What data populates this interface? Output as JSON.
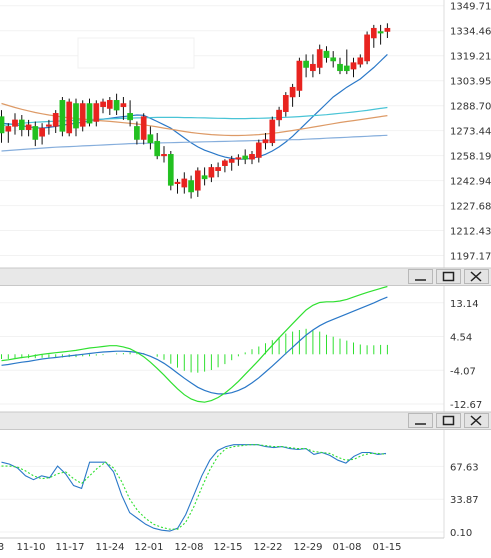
{
  "chart_data": [
    {
      "type": "candlestick",
      "title": "",
      "y_ticks": [
        "1349.71",
        "1334.46",
        "1319.21",
        "1303.95",
        "1288.70",
        "1273.44",
        "1258.19",
        "1242.94",
        "1227.68",
        "1212.43",
        "1197.17"
      ],
      "ylim": [
        1192,
        1352
      ],
      "candles": [
        {
          "o": 1282,
          "h": 1286,
          "l": 1266,
          "c": 1272
        },
        {
          "o": 1273,
          "h": 1278,
          "l": 1266,
          "c": 1276
        },
        {
          "o": 1276,
          "h": 1284,
          "l": 1271,
          "c": 1280
        },
        {
          "o": 1280,
          "h": 1283,
          "l": 1270,
          "c": 1274
        },
        {
          "o": 1274,
          "h": 1280,
          "l": 1270,
          "c": 1277
        },
        {
          "o": 1276,
          "h": 1279,
          "l": 1264,
          "c": 1268
        },
        {
          "o": 1270,
          "h": 1278,
          "l": 1265,
          "c": 1275
        },
        {
          "o": 1276,
          "h": 1280,
          "l": 1271,
          "c": 1277
        },
        {
          "o": 1276,
          "h": 1286,
          "l": 1272,
          "c": 1284
        },
        {
          "o": 1292,
          "h": 1294,
          "l": 1270,
          "c": 1273
        },
        {
          "o": 1272,
          "h": 1293,
          "l": 1270,
          "c": 1291
        },
        {
          "o": 1290,
          "h": 1293,
          "l": 1270,
          "c": 1275
        },
        {
          "o": 1276,
          "h": 1292,
          "l": 1273,
          "c": 1290
        },
        {
          "o": 1290,
          "h": 1293,
          "l": 1276,
          "c": 1278
        },
        {
          "o": 1279,
          "h": 1292,
          "l": 1276,
          "c": 1290
        },
        {
          "o": 1288,
          "h": 1293,
          "l": 1284,
          "c": 1291
        },
        {
          "o": 1287,
          "h": 1294,
          "l": 1283,
          "c": 1292
        },
        {
          "o": 1292,
          "h": 1296,
          "l": 1283,
          "c": 1286
        },
        {
          "o": 1288,
          "h": 1294,
          "l": 1280,
          "c": 1290
        },
        {
          "o": 1284,
          "h": 1292,
          "l": 1276,
          "c": 1280
        },
        {
          "o": 1276,
          "h": 1279,
          "l": 1265,
          "c": 1268
        },
        {
          "o": 1268,
          "h": 1284,
          "l": 1265,
          "c": 1282
        },
        {
          "o": 1271,
          "h": 1276,
          "l": 1262,
          "c": 1266
        },
        {
          "o": 1267,
          "h": 1272,
          "l": 1256,
          "c": 1258
        },
        {
          "o": 1258,
          "h": 1264,
          "l": 1254,
          "c": 1259
        },
        {
          "o": 1259,
          "h": 1261,
          "l": 1237,
          "c": 1240
        },
        {
          "o": 1241,
          "h": 1244,
          "l": 1235,
          "c": 1242
        },
        {
          "o": 1239,
          "h": 1248,
          "l": 1235,
          "c": 1244
        },
        {
          "o": 1243,
          "h": 1246,
          "l": 1232,
          "c": 1236
        },
        {
          "o": 1237,
          "h": 1251,
          "l": 1233,
          "c": 1249
        },
        {
          "o": 1246,
          "h": 1251,
          "l": 1240,
          "c": 1244
        },
        {
          "o": 1245,
          "h": 1253,
          "l": 1242,
          "c": 1251
        },
        {
          "o": 1249,
          "h": 1254,
          "l": 1245,
          "c": 1251
        },
        {
          "o": 1252,
          "h": 1256,
          "l": 1248,
          "c": 1255
        },
        {
          "o": 1254,
          "h": 1258,
          "l": 1249,
          "c": 1256
        },
        {
          "o": 1256,
          "h": 1259,
          "l": 1252,
          "c": 1257
        },
        {
          "o": 1258,
          "h": 1262,
          "l": 1253,
          "c": 1256
        },
        {
          "o": 1256,
          "h": 1261,
          "l": 1253,
          "c": 1259
        },
        {
          "o": 1257,
          "h": 1268,
          "l": 1254,
          "c": 1266
        },
        {
          "o": 1266,
          "h": 1272,
          "l": 1262,
          "c": 1268
        },
        {
          "o": 1266,
          "h": 1282,
          "l": 1264,
          "c": 1280
        },
        {
          "o": 1280,
          "h": 1288,
          "l": 1276,
          "c": 1286
        },
        {
          "o": 1285,
          "h": 1297,
          "l": 1282,
          "c": 1295
        },
        {
          "o": 1294,
          "h": 1302,
          "l": 1288,
          "c": 1300
        },
        {
          "o": 1298,
          "h": 1318,
          "l": 1294,
          "c": 1316
        },
        {
          "o": 1316,
          "h": 1320,
          "l": 1306,
          "c": 1312
        },
        {
          "o": 1310,
          "h": 1320,
          "l": 1306,
          "c": 1314
        },
        {
          "o": 1312,
          "h": 1326,
          "l": 1308,
          "c": 1323
        },
        {
          "o": 1322,
          "h": 1325,
          "l": 1315,
          "c": 1318
        },
        {
          "o": 1318,
          "h": 1322,
          "l": 1312,
          "c": 1316
        },
        {
          "o": 1314,
          "h": 1318,
          "l": 1308,
          "c": 1310
        },
        {
          "o": 1313,
          "h": 1323,
          "l": 1308,
          "c": 1310
        },
        {
          "o": 1311,
          "h": 1318,
          "l": 1306,
          "c": 1315
        },
        {
          "o": 1314,
          "h": 1320,
          "l": 1312,
          "c": 1318
        },
        {
          "o": 1316,
          "h": 1334,
          "l": 1314,
          "c": 1332
        },
        {
          "o": 1330,
          "h": 1338,
          "l": 1324,
          "c": 1336
        },
        {
          "o": 1334,
          "h": 1338,
          "l": 1326,
          "c": 1333
        },
        {
          "o": 1334,
          "h": 1339,
          "l": 1330,
          "c": 1336
        }
      ],
      "lines": [
        {
          "color": "#2a78c8",
          "values": [
            1278,
            1277.6,
            1277.1,
            1276.4,
            1275.8,
            1275.2,
            1275.0,
            1275.4,
            1276.0,
            1276.8,
            1277.4,
            1278.0,
            1278.6,
            1279.2,
            1280.0,
            1280.5,
            1281.0,
            1281.5,
            1282.0,
            1282.5,
            1283.0,
            1282.8,
            1281.0,
            1279.0,
            1277.0,
            1275.0,
            1272.0,
            1269.0,
            1266.0,
            1263.5,
            1261.5,
            1260.0,
            1258.5,
            1257.3,
            1256.5,
            1256.0,
            1256.0,
            1256.6,
            1257.5,
            1259.0,
            1261.0,
            1263.5,
            1266.5,
            1270.0,
            1274.0,
            1278.0,
            1282.0,
            1286.0,
            1290.0,
            1294.0,
            1297.0,
            1300.0,
            1302.5,
            1305.0,
            1308.5,
            1312.0,
            1316.0,
            1320.0
          ]
        },
        {
          "color": "#49c4d6",
          "values": [
            1276.5,
            1277.0,
            1277.5,
            1278.0,
            1278.3,
            1278.6,
            1278.8,
            1279.0,
            1279.2,
            1279.4,
            1279.6,
            1279.8,
            1280.0,
            1280.2,
            1280.4,
            1280.5,
            1280.7,
            1280.8,
            1281.0,
            1281.1,
            1281.2,
            1281.3,
            1281.4,
            1281.5,
            1281.5,
            1281.5,
            1281.5,
            1281.4,
            1281.4,
            1281.3,
            1281.2,
            1281.1,
            1281.0,
            1280.9,
            1280.8,
            1280.8,
            1280.8,
            1280.9,
            1281.0,
            1281.1,
            1281.2,
            1281.4,
            1281.6,
            1281.8,
            1282.0,
            1282.3,
            1282.6,
            1282.9,
            1283.2,
            1283.6,
            1284.0,
            1284.4,
            1284.8,
            1285.3,
            1285.8,
            1286.4,
            1287.0,
            1287.6
          ]
        },
        {
          "color": "#dd9a66",
          "values": [
            1290.0,
            1288.8,
            1287.6,
            1286.5,
            1285.5,
            1284.5,
            1283.7,
            1283.0,
            1282.4,
            1281.8,
            1281.3,
            1280.9,
            1280.5,
            1280.1,
            1279.7,
            1279.4,
            1279.1,
            1278.7,
            1278.3,
            1277.9,
            1277.5,
            1277.0,
            1276.4,
            1275.7,
            1275.0,
            1274.3,
            1273.6,
            1272.9,
            1272.3,
            1271.8,
            1271.4,
            1271.0,
            1270.8,
            1270.6,
            1270.5,
            1270.5,
            1270.6,
            1270.8,
            1271.0,
            1271.4,
            1271.8,
            1272.3,
            1272.9,
            1273.5,
            1274.2,
            1274.9,
            1275.6,
            1276.3,
            1277.0,
            1277.7,
            1278.4,
            1279.0,
            1279.6,
            1280.2,
            1280.8,
            1281.4,
            1282.0,
            1282.6
          ]
        },
        {
          "color": "#86aedc",
          "values": [
            1261.0,
            1261.3,
            1261.6,
            1261.9,
            1262.2,
            1262.5,
            1262.8,
            1263.1,
            1263.3,
            1263.5,
            1263.7,
            1263.9,
            1264.1,
            1264.3,
            1264.5,
            1264.7,
            1264.9,
            1265.1,
            1265.3,
            1265.5,
            1265.6,
            1265.7,
            1265.8,
            1265.9,
            1266.0,
            1266.1,
            1266.2,
            1266.3,
            1266.4,
            1266.5,
            1266.6,
            1266.7,
            1266.8,
            1266.9,
            1267.0,
            1267.1,
            1267.2,
            1267.3,
            1267.4,
            1267.5,
            1267.6,
            1267.7,
            1267.8,
            1267.9,
            1268.0,
            1268.2,
            1268.4,
            1268.6,
            1268.8,
            1269.0,
            1269.2,
            1269.4,
            1269.6,
            1269.8,
            1270.0,
            1270.2,
            1270.4,
            1270.6
          ]
        }
      ]
    },
    {
      "type": "line+bar",
      "title": "",
      "y_ticks": [
        "13.14",
        "4.54",
        "-4.07",
        "-12.67"
      ],
      "ylim": [
        -14.2,
        16.4
      ],
      "histogram": [
        -1.2,
        -1.2,
        -1.2,
        -1.0,
        -1.0,
        -1.0,
        -0.9,
        -0.9,
        -0.8,
        -0.8,
        -0.7,
        -0.7,
        -0.5,
        -0.5,
        -0.3,
        -0.2,
        0.0,
        0.2,
        0.3,
        0.5,
        0.5,
        0.3,
        0.0,
        -0.6,
        -1.4,
        -2.4,
        -3.4,
        -4.2,
        -4.6,
        -4.7,
        -4.4,
        -4.0,
        -3.3,
        -2.5,
        -1.5,
        -0.5,
        0.5,
        1.3,
        2.0,
        2.8,
        3.6,
        4.4,
        5.3,
        5.8,
        6.2,
        6.5,
        6.2,
        5.8,
        5.0,
        4.5,
        4.0,
        3.5,
        3.0,
        2.5,
        2.3,
        2.3,
        2.4,
        2.4
      ],
      "lines": [
        {
          "color": "#2a78c8",
          "values": [
            -2.8,
            -2.6,
            -2.3,
            -2.0,
            -1.8,
            -1.5,
            -1.2,
            -1.0,
            -0.8,
            -0.6,
            -0.4,
            -0.2,
            0.0,
            0.2,
            0.4,
            0.6,
            0.7,
            0.8,
            0.8,
            0.7,
            0.5,
            0.1,
            -0.5,
            -1.3,
            -2.3,
            -3.5,
            -4.8,
            -6.1,
            -7.3,
            -8.4,
            -9.2,
            -9.8,
            -10.1,
            -10.1,
            -9.8,
            -9.2,
            -8.4,
            -7.3,
            -6.0,
            -4.5,
            -3.0,
            -1.4,
            0.2,
            1.8,
            3.4,
            4.9,
            6.2,
            7.3,
            8.2,
            8.9,
            9.6,
            10.3,
            11.0,
            11.7,
            12.4,
            13.1,
            13.9,
            14.6
          ]
        },
        {
          "color": "#2fe030",
          "values": [
            -1.6,
            -1.4,
            -1.1,
            -0.8,
            -0.6,
            -0.3,
            0.0,
            0.2,
            0.4,
            0.6,
            0.8,
            1.0,
            1.3,
            1.6,
            1.8,
            2.0,
            2.2,
            2.2,
            1.9,
            1.4,
            0.5,
            -0.6,
            -2.0,
            -3.6,
            -5.3,
            -7.1,
            -8.8,
            -10.3,
            -11.4,
            -12.0,
            -12.2,
            -11.8,
            -11.0,
            -9.9,
            -8.5,
            -6.9,
            -5.1,
            -3.3,
            -1.5,
            0.4,
            2.3,
            4.2,
            6.0,
            7.8,
            9.6,
            11.3,
            12.5,
            13.2,
            13.4,
            13.4,
            13.6,
            14.0,
            14.6,
            15.2,
            15.8,
            16.3,
            16.8,
            17.3
          ]
        }
      ]
    },
    {
      "type": "line",
      "title": "",
      "y_ticks": [
        "67.63",
        "33.87",
        "0.10"
      ],
      "ylim": [
        -4,
        101
      ],
      "x_labels": [
        "3",
        "11-10",
        "11-17",
        "11-24",
        "12-01",
        "12-08",
        "12-15",
        "12-22",
        "12-29",
        "01-08",
        "01-15"
      ],
      "lines": [
        {
          "color": "#2a78c8",
          "values": [
            72,
            70,
            66,
            58,
            54,
            58,
            56,
            68,
            60,
            48,
            45,
            72,
            72,
            72,
            62,
            38,
            20,
            14,
            8,
            4,
            2,
            1,
            4,
            18,
            38,
            58,
            74,
            84,
            88,
            90,
            90,
            90,
            90,
            88,
            87,
            88,
            86,
            85,
            86,
            80,
            82,
            79,
            74,
            71,
            78,
            82,
            82,
            80,
            81
          ]
        },
        {
          "color": "#2fe030",
          "values": [
            68,
            68,
            67,
            63,
            58,
            55,
            56,
            60,
            62,
            55,
            50,
            58,
            66,
            72,
            66,
            52,
            34,
            22,
            14,
            8,
            5,
            3,
            3,
            10,
            26,
            46,
            64,
            78,
            86,
            88,
            89,
            90,
            90,
            89,
            88,
            88,
            87,
            86,
            86,
            83,
            82,
            81,
            77,
            74,
            75,
            79,
            81,
            81,
            80
          ]
        }
      ]
    }
  ]
}
